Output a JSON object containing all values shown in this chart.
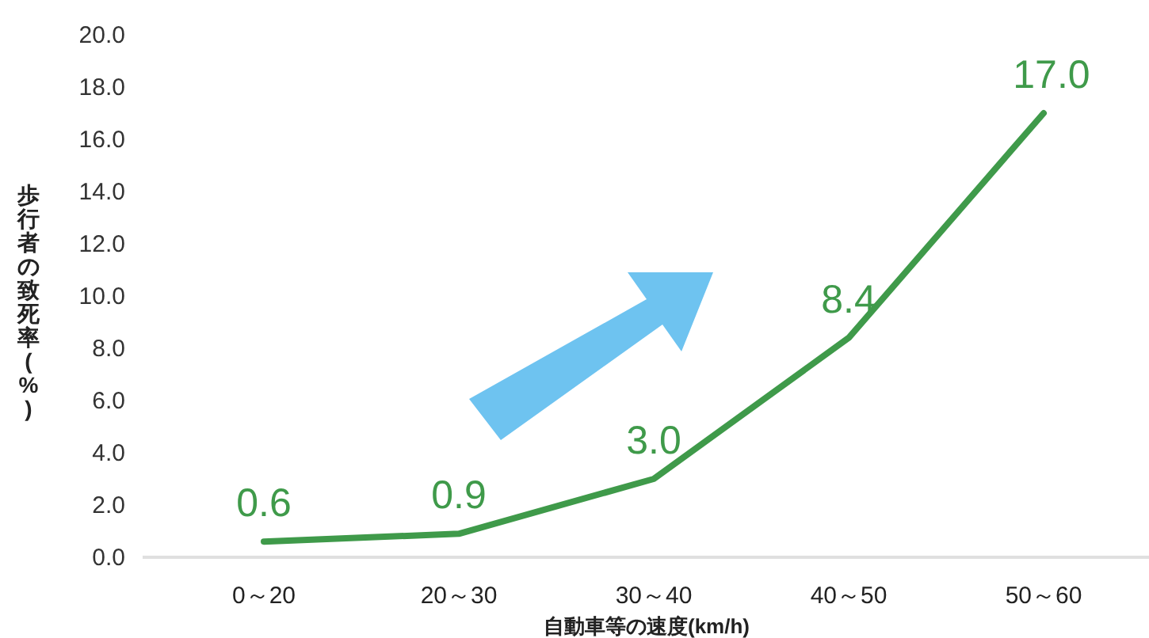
{
  "chart_data": {
    "type": "line",
    "xlabel": "自動車等の速度(km/h)",
    "ylabel": "歩行者の致死率(%)",
    "categories": [
      "0～20",
      "20～30",
      "30～40",
      "40～50",
      "50～60"
    ],
    "series": [
      {
        "color": "#3f9a4a",
        "values": [
          0.6,
          0.9,
          3.0,
          8.4,
          17.0
        ],
        "value_labels": [
          "0.6",
          "0.9",
          "3.0",
          "8.4",
          "17.0"
        ]
      }
    ],
    "ylim": [
      0,
      20
    ],
    "yticks": [
      {
        "value": 0,
        "label": "0.0"
      },
      {
        "value": 2,
        "label": "2.0"
      },
      {
        "value": 4,
        "label": "4.0"
      },
      {
        "value": 6,
        "label": "6.0"
      },
      {
        "value": 8,
        "label": "8.0"
      },
      {
        "value": 10,
        "label": "10.0"
      },
      {
        "value": 12,
        "label": "12.0"
      },
      {
        "value": 14,
        "label": "14.0"
      },
      {
        "value": 16,
        "label": "16.0"
      },
      {
        "value": 18,
        "label": "18.0"
      },
      {
        "value": 20,
        "label": "20.0"
      }
    ],
    "grid": false,
    "marker": "none",
    "line_style": "solid"
  }
}
